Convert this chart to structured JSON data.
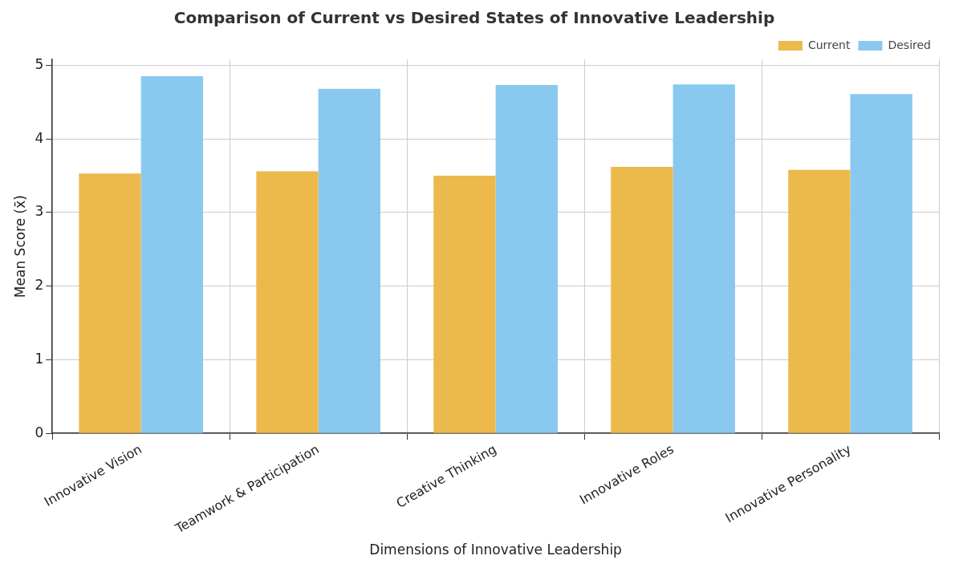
{
  "chart_data": {
    "type": "bar",
    "title": "Comparison of Current vs Desired States of Innovative Leadership",
    "xlabel": "Dimensions of Innovative Leadership",
    "ylabel": "Mean Score (x̄)",
    "categories": [
      "Innovative Vision",
      "Teamwork & Participation",
      "Creative Thinking",
      "Innovative Roles",
      "Innovative Personality"
    ],
    "series": [
      {
        "name": "Current",
        "color": "#ecb94c",
        "values": [
          3.53,
          3.56,
          3.5,
          3.62,
          3.58
        ]
      },
      {
        "name": "Desired",
        "color": "#89c8ef",
        "values": [
          4.85,
          4.68,
          4.73,
          4.74,
          4.61
        ]
      }
    ],
    "ylim": [
      0,
      5.08
    ],
    "yticks": [
      0,
      1,
      2,
      3,
      4,
      5
    ],
    "grid": true,
    "legend": "top right"
  }
}
